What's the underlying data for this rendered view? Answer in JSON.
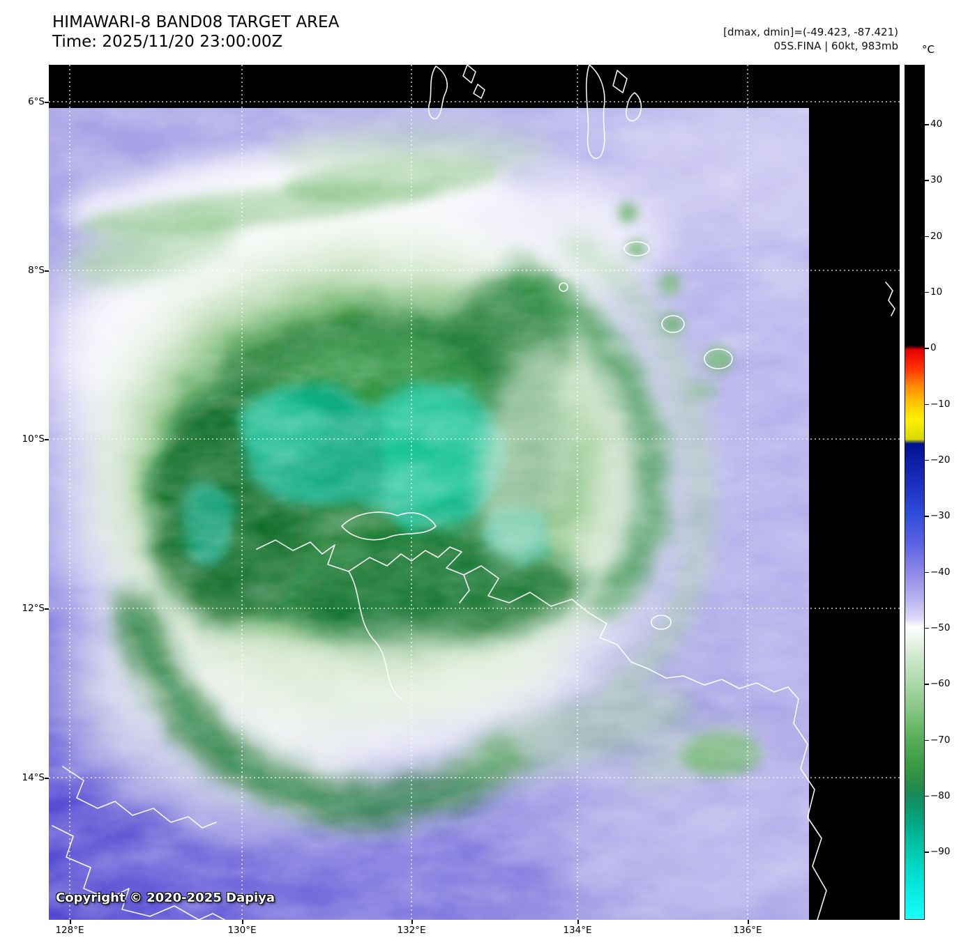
{
  "header": {
    "title": "HIMAWARI-8 BAND08 TARGET AREA",
    "time_line": "Time: 2025/11/20 23:00:00Z",
    "stats_line": "[dmax, dmin]=(-49.423, -87.421)",
    "storm_line": "05S.FINA | 60kt, 983mb"
  },
  "map": {
    "copyright": "Copyright © 2020-2025 Dapiya",
    "palette": {
      "background_moisture": "#a8a2e6",
      "deep_moist_blue": "#4a3fd0",
      "cloud_white": "#ffffff",
      "light_green_cloud": "#bfdcb6",
      "dark_green_convection": "#1b7c31",
      "coldest_teal_core": "#12ba8e",
      "coastline": "#ffffff",
      "gridline": "#ffffff",
      "margin": "#000000"
    }
  },
  "axes": {
    "y_tick_labels": [
      "6°S",
      "8°S",
      "10°S",
      "12°S",
      "14°S"
    ],
    "x_tick_labels": [
      "128°E",
      "130°E",
      "132°E",
      "134°E",
      "136°E"
    ]
  },
  "colorbar": {
    "unit": "°C",
    "tick_labels": [
      "40",
      "30",
      "20",
      "10",
      "0",
      "−10",
      "−20",
      "−30",
      "−40",
      "−50",
      "−60",
      "−70",
      "−80",
      "−90"
    ],
    "gradient_stops": [
      [
        0.0,
        "#000000"
      ],
      [
        0.328,
        "#000000"
      ],
      [
        0.333,
        "#e60000"
      ],
      [
        0.355,
        "#ff3300"
      ],
      [
        0.375,
        "#ff8800"
      ],
      [
        0.395,
        "#ffc400"
      ],
      [
        0.415,
        "#fff200"
      ],
      [
        0.438,
        "#d8d800"
      ],
      [
        0.443,
        "#00128c"
      ],
      [
        0.462,
        "#0a1ea6"
      ],
      [
        0.5,
        "#2137c6"
      ],
      [
        0.527,
        "#2f4fda"
      ],
      [
        0.56,
        "#5a62e2"
      ],
      [
        0.593,
        "#8d87e8"
      ],
      [
        0.625,
        "#b8b3f0"
      ],
      [
        0.648,
        "#ddd9f7"
      ],
      [
        0.658,
        "#ffffff"
      ],
      [
        0.672,
        "#eef6ec"
      ],
      [
        0.69,
        "#d3ead0"
      ],
      [
        0.724,
        "#abd9a8"
      ],
      [
        0.757,
        "#83c581"
      ],
      [
        0.789,
        "#57ae58"
      ],
      [
        0.82,
        "#3a9a42"
      ],
      [
        0.845,
        "#25894b"
      ],
      [
        0.857,
        "#168a5e"
      ],
      [
        0.887,
        "#00a884"
      ],
      [
        0.92,
        "#00c9ae"
      ],
      [
        0.955,
        "#00e4d8"
      ],
      [
        1.0,
        "#18ffff"
      ]
    ]
  }
}
